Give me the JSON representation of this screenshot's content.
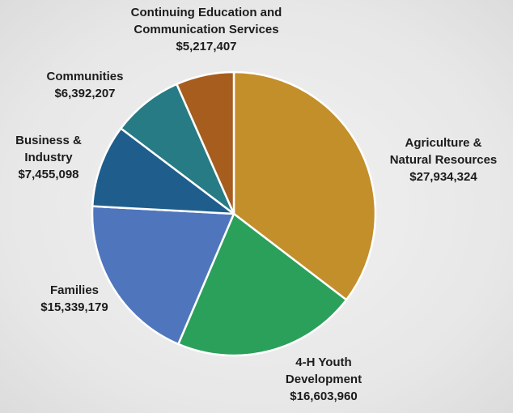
{
  "chart_data": {
    "type": "pie",
    "slices": [
      {
        "name_lines": [
          "Agriculture &",
          "Natural Resources"
        ],
        "value_text": "$27,934,324",
        "value": 27934324,
        "color": "#C38F2B"
      },
      {
        "name_lines": [
          "4-H Youth",
          "Development"
        ],
        "value_text": "$16,603,960",
        "value": 16603960,
        "color": "#2BA05B"
      },
      {
        "name_lines": [
          "Families"
        ],
        "value_text": "$15,339,179",
        "value": 15339179,
        "color": "#4F76BD"
      },
      {
        "name_lines": [
          "Business &",
          "Industry"
        ],
        "value_text": "$7,455,098",
        "value": 7455098,
        "color": "#1F5E8C"
      },
      {
        "name_lines": [
          "Communities"
        ],
        "value_text": "$6,392,207",
        "value": 6392207,
        "color": "#277B85"
      },
      {
        "name_lines": [
          "Continuing Education and",
          "Communication Services"
        ],
        "value_text": "$5,217,407",
        "value": 5217407,
        "color": "#A65D1E"
      }
    ],
    "start_angle": "12 o'clock",
    "direction": "clockwise",
    "legend": "none"
  }
}
